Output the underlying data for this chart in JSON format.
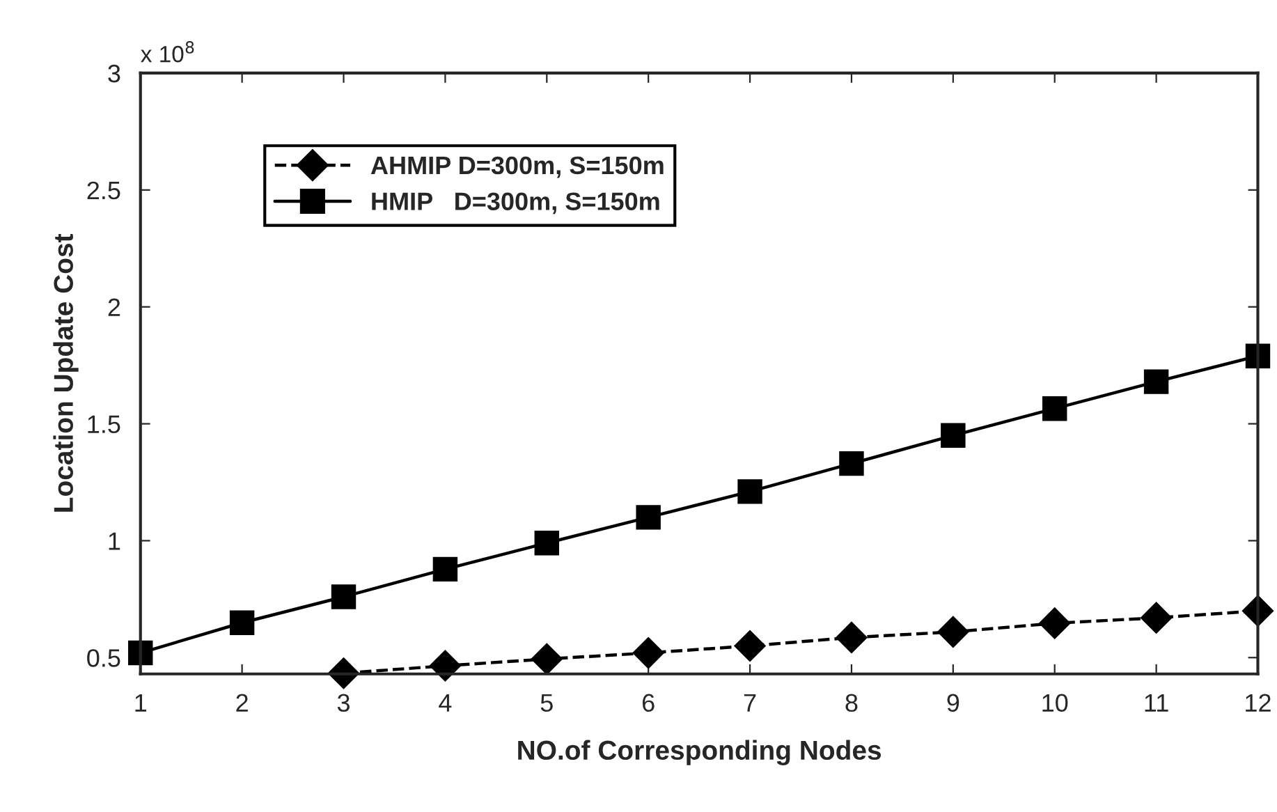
{
  "chart_data": {
    "type": "line",
    "xlabel": "NO.of Corresponding Nodes",
    "ylabel": "Location Update Cost",
    "annotations": [
      "x 10$^{8}$"
    ],
    "x": [
      1,
      2,
      3,
      4,
      5,
      6,
      7,
      8,
      9,
      10,
      11,
      12
    ],
    "series": [
      {
        "name": "AHMIP D=300m, S=150m",
        "color": "#000000",
        "marker": "diamond",
        "line_style": "dashed",
        "values": [
          null,
          null,
          0.433,
          0.465,
          0.494,
          0.52,
          0.55,
          0.586,
          0.61,
          0.647,
          0.67,
          0.7
        ]
      },
      {
        "name": "HMIP   D=300m, S=150m",
        "color": "#000000",
        "marker": "square",
        "line_style": "solid",
        "values": [
          0.52,
          0.649,
          0.76,
          0.878,
          0.99,
          1.1,
          1.21,
          1.33,
          1.45,
          1.565,
          1.68,
          1.79
        ]
      }
    ],
    "xlim": [
      1,
      12
    ],
    "xticks": [
      1,
      2,
      3,
      4,
      5,
      6,
      7,
      8,
      9,
      10,
      11,
      12
    ],
    "ylim": [
      0.43,
      3
    ],
    "yticks": [
      0.5,
      1,
      1.5,
      2,
      2.5,
      3
    ],
    "grid": false,
    "legend": "top left"
  }
}
